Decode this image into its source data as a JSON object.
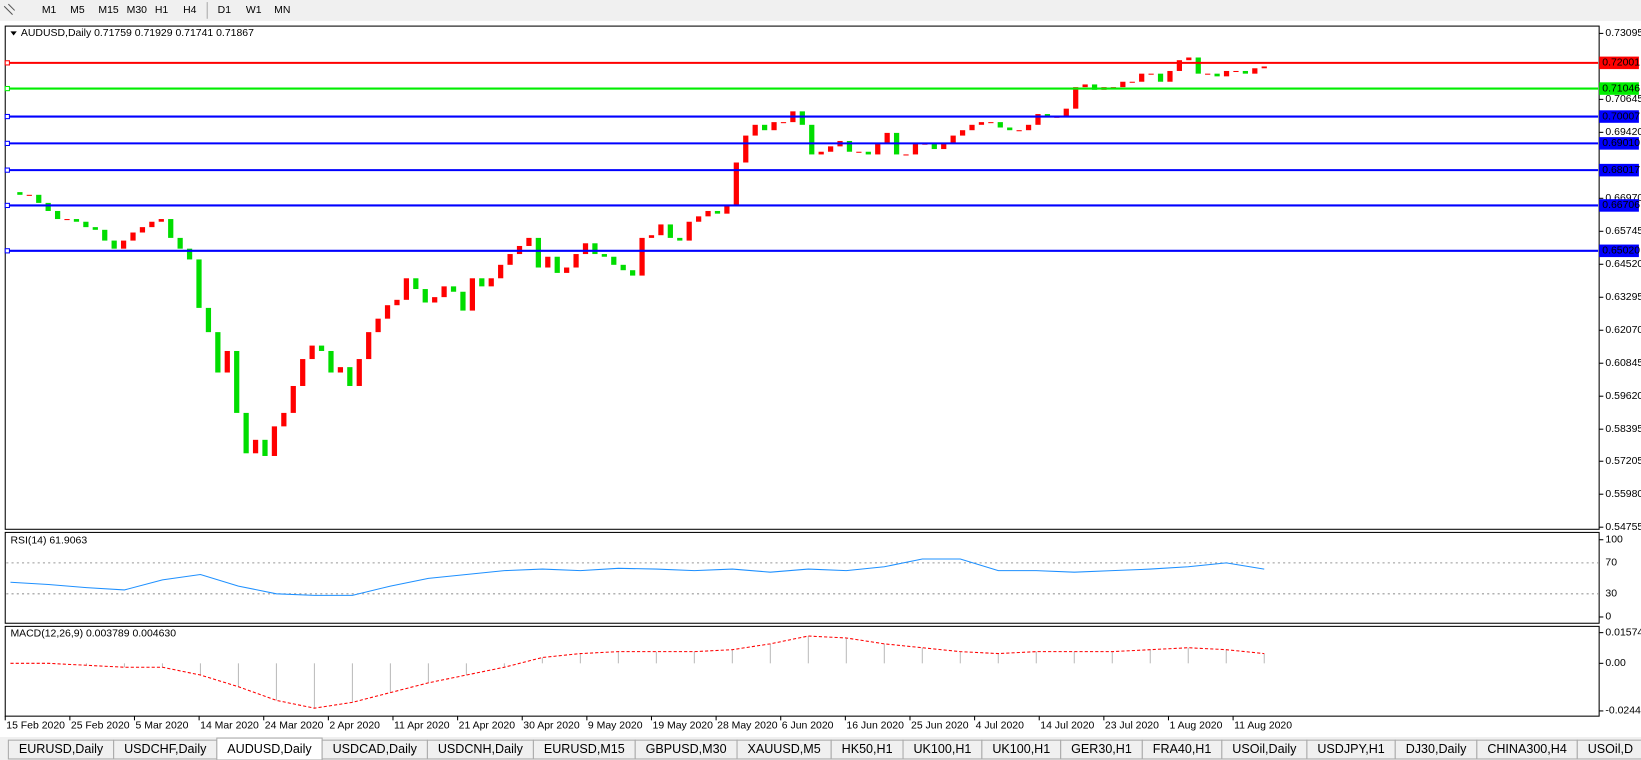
{
  "toolbar": {
    "timeframes": [
      "M1",
      "M5",
      "M15",
      "M30",
      "H1",
      "H4",
      "D1",
      "W1",
      "MN"
    ]
  },
  "chart_data": [
    {
      "type": "candlestick",
      "title": "AUDUSD,Daily  0.71759 0.71929 0.71741 0.71867",
      "closes": [
        0.672,
        0.671,
        0.671,
        0.668,
        0.665,
        0.662,
        0.662,
        0.661,
        0.659,
        0.658,
        0.654,
        0.651,
        0.654,
        0.657,
        0.659,
        0.661,
        0.662,
        0.655,
        0.651,
        0.647,
        0.629,
        0.62,
        0.605,
        0.613,
        0.59,
        0.575,
        0.58,
        0.574,
        0.585,
        0.59,
        0.6,
        0.61,
        0.615,
        0.613,
        0.605,
        0.607,
        0.6,
        0.61,
        0.62,
        0.625,
        0.63,
        0.632,
        0.64,
        0.636,
        0.631,
        0.633,
        0.637,
        0.635,
        0.628,
        0.64,
        0.637,
        0.64,
        0.645,
        0.649,
        0.652,
        0.655,
        0.644,
        0.648,
        0.642,
        0.644,
        0.649,
        0.653,
        0.649,
        0.648,
        0.645,
        0.643,
        0.641,
        0.655,
        0.656,
        0.66,
        0.655,
        0.654,
        0.661,
        0.663,
        0.665,
        0.664,
        0.667,
        0.683,
        0.693,
        0.697,
        0.695,
        0.698,
        0.698,
        0.702,
        0.697,
        0.686,
        0.687,
        0.689,
        0.691,
        0.687,
        0.687,
        0.686,
        0.69,
        0.694,
        0.686,
        0.686,
        0.69,
        0.69,
        0.688,
        0.69,
        0.693,
        0.695,
        0.697,
        0.698,
        0.698,
        0.696,
        0.695,
        0.695,
        0.697,
        0.701,
        0.7,
        0.7,
        0.703,
        0.711,
        0.712,
        0.71,
        0.711,
        0.711,
        0.713,
        0.713,
        0.716,
        0.716,
        0.713,
        0.717,
        0.721,
        0.722,
        0.716,
        0.716,
        0.715,
        0.717,
        0.717,
        0.716,
        0.718,
        0.71867
      ],
      "up_color": "#ff0000",
      "down_color": "#00dd00",
      "ylim": [
        0.54755,
        0.73095
      ],
      "yticks": [
        0.73095,
        0.70645,
        {
          "value": 0.6942,
          "label": "0.69420"
        },
        {
          "value": 0.6697,
          "label": "0.66970"
        },
        0.65745,
        {
          "value": 0.6452,
          "label": "0.64520"
        },
        0.63295,
        {
          "value": 0.6207,
          "label": "0.62070"
        },
        0.60845,
        {
          "value": 0.5962,
          "label": "0.59620"
        },
        0.58395,
        0.57205,
        {
          "value": 0.5598,
          "label": "0.55980"
        },
        0.54755
      ],
      "levels": [
        0.72001,
        0.71046,
        0.70007,
        {
          "value": 0.6901,
          "label": "0.69010"
        },
        0.68017,
        0.66706,
        {
          "value": 0.6502,
          "label": "0.65020"
        }
      ],
      "level_colors": [
        "#ff0000",
        "#00ee00",
        "#0000ff",
        "#0000ff",
        "#0000ff",
        "#0000ff",
        "#0000ff"
      ],
      "x_labels": [
        "15 Feb 2020",
        "25 Feb 2020",
        "5 Mar 2020",
        "14 Mar 2020",
        "24 Mar 2020",
        "2 Apr 2020",
        "11 Apr 2020",
        "21 Apr 2020",
        "30 Apr 2020",
        "9 May 2020",
        "19 May 2020",
        "28 May 2020",
        "6 Jun 2020",
        "16 Jun 2020",
        "25 Jun 2020",
        "4 Jul 2020",
        "14 Jul 2020",
        "23 Jul 2020",
        "1 Aug 2020",
        "11 Aug 2020"
      ]
    },
    {
      "type": "line",
      "title": "RSI(14) 61.9063",
      "color": "#1e90ff",
      "dashed": false,
      "values": [
        45,
        42,
        38,
        35,
        48,
        55,
        40,
        30,
        28,
        28,
        40,
        50,
        55,
        60,
        62,
        60,
        63,
        62,
        60,
        62,
        58,
        62,
        60,
        65,
        75,
        75,
        60,
        60,
        58,
        60,
        62,
        65,
        70,
        62
      ],
      "ylim": [
        0,
        100
      ],
      "yticks": [
        100,
        70,
        30,
        0
      ]
    },
    {
      "type": "line",
      "title": "MACD(12,26,9) 0.003789 0.004630",
      "color": "#ff0000",
      "dashed": true,
      "values": [
        0,
        0,
        -0.001,
        -0.002,
        -0.002,
        -0.006,
        -0.012,
        -0.019,
        -0.023,
        -0.02,
        -0.015,
        -0.01,
        -0.006,
        -0.002,
        0.003,
        0.005,
        0.006,
        0.006,
        0.006,
        0.007,
        0.01,
        0.014,
        0.013,
        0.01,
        0.008,
        0.006,
        0.005,
        0.006,
        0.006,
        0.006,
        0.007,
        0.008,
        0.007,
        0.005
      ],
      "ylim": [
        -0.024412,
        0.015741
      ],
      "yticks": [
        0.015741,
        {
          "value": 0,
          "label": "0.00"
        },
        -0.024412
      ]
    }
  ],
  "tabs": [
    "EURUSD,Daily",
    "USDCHF,Daily",
    "AUDUSD,Daily",
    "USDCAD,Daily",
    "USDCNH,Daily",
    "EURUSD,M15",
    "GBPUSD,M30",
    "XAUUSD,M5",
    "HK50,H1",
    "UK100,H1",
    "UK100,H1",
    "GER30,H1",
    "FRA40,H1",
    "USOil,Daily",
    "USDJPY,H1",
    "DJ30,Daily",
    "CHINA300,H4",
    "USOil,D"
  ],
  "active_tab": 2
}
